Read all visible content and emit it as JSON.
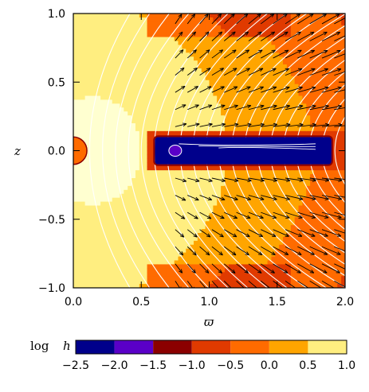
{
  "chart_data": {
    "type": "heatmap",
    "title": "",
    "xlabel": "ϖ",
    "ylabel": "z",
    "xlim": [
      0.0,
      2.0
    ],
    "ylim": [
      -1.0,
      1.0
    ],
    "x_ticks": [
      "0.0",
      "0.5",
      "1.0",
      "1.5",
      "2.0"
    ],
    "y_ticks": [
      "−1.0",
      "−0.5",
      "0.0",
      "0.5",
      "1.0"
    ],
    "colorbar": {
      "label_prefix": "log",
      "label_var": "h",
      "range": [
        -2.5,
        1.0
      ],
      "ticks": [
        "−2.5",
        "−2.0",
        "−1.5",
        "−1.0",
        "−0.5",
        "0.0",
        "0.5",
        "1.0"
      ],
      "levels": [
        {
          "from": -2.5,
          "to": -2.0,
          "color": "#00008b"
        },
        {
          "from": -2.0,
          "to": -1.5,
          "color": "#5a00c8"
        },
        {
          "from": -1.5,
          "to": -1.0,
          "color": "#8b0000"
        },
        {
          "from": -1.0,
          "to": -0.5,
          "color": "#e03a00"
        },
        {
          "from": -0.5,
          "to": 0.0,
          "color": "#ff6b00"
        },
        {
          "from": 0.0,
          "to": 0.5,
          "color": "#ffa500"
        },
        {
          "from": 0.5,
          "to": 1.0,
          "color": "#ffee80"
        },
        {
          "from": 1.0,
          "to": 1.5,
          "color": "#ffffd0"
        }
      ]
    },
    "inner_sphere_radius": 0.1,
    "disk_region": {
      "x_range": [
        0.6,
        1.9
      ],
      "z_range": [
        -0.1,
        0.1
      ],
      "log_h": -2.3
    },
    "field_line_count": 20,
    "arrow_field": "velocity",
    "grid": false
  }
}
